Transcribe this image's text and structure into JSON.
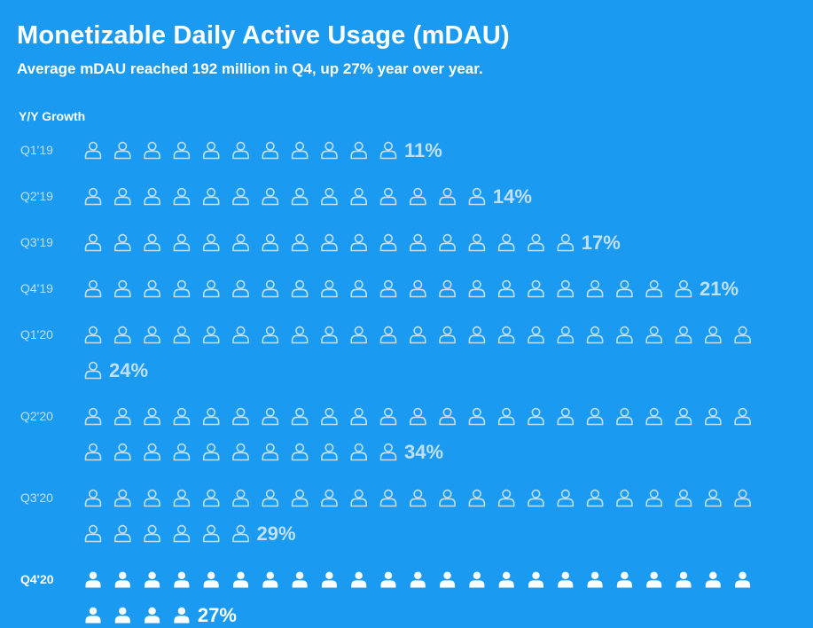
{
  "header": {
    "title": "Monetizable Daily Active Usage (mDAU)",
    "subtitle": "Average mDAU reached 192 million in Q4, up 27% year over year.",
    "growth_label": "Y/Y Growth"
  },
  "colors": {
    "background": "#1b9af2",
    "past_quarter": "#bfe0fb",
    "current_quarter": "#ffffff"
  },
  "icons": {
    "past": "person-outline-icon",
    "current": "person-filled-icon"
  },
  "chart_data": {
    "type": "pictogram",
    "unit": "one person icon per 1% Y/Y growth",
    "title": "Monetizable Daily Active Usage (mDAU)",
    "subtitle": "Average mDAU reached 192 million in Q4, up 27% year over year.",
    "ylabel": "Y/Y Growth",
    "categories": [
      "Q1'19",
      "Q2'19",
      "Q3'19",
      "Q4'19",
      "Q1'20",
      "Q2'20",
      "Q3'20",
      "Q4'20"
    ],
    "values": [
      11,
      14,
      17,
      21,
      24,
      34,
      29,
      27
    ],
    "value_labels": [
      "11%",
      "14%",
      "17%",
      "21%",
      "24%",
      "34%",
      "29%",
      "27%"
    ],
    "highlight": "Q4'20",
    "icons_per_line": 23
  }
}
